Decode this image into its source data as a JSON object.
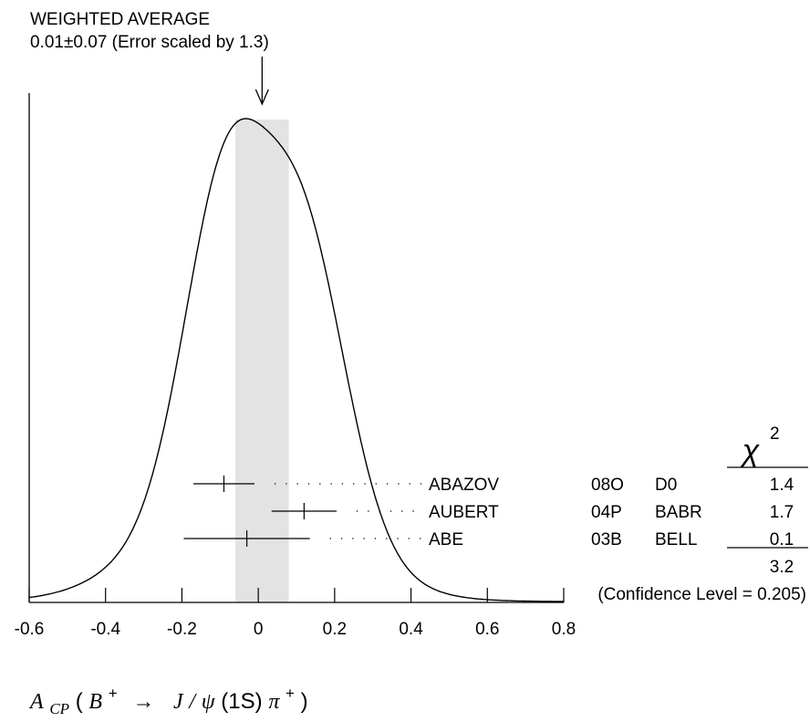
{
  "chart_data": {
    "type": "ideogram",
    "title": "WEIGHTED AVERAGE",
    "average": {
      "text": "0.01±0.07 (Error scaled by 1.3)",
      "value": 0.01,
      "error": 0.07
    },
    "x_axis": {
      "range": [
        -0.6,
        0.8
      ],
      "ticks": [
        -0.6,
        -0.4,
        -0.2,
        0,
        0.2,
        0.4,
        0.6,
        0.8
      ],
      "tick_labels": [
        "-0.6",
        "-0.4",
        "-0.2",
        "0",
        "0.2",
        "0.4",
        "0.6",
        "0.8"
      ]
    },
    "xlabel_parts": {
      "a": "A",
      "cp": "CP",
      "open": "(",
      "b": "B",
      "plus": "+",
      "arrow": "→",
      "j": "J",
      "slash": "/",
      "psi": "ψ",
      "one_s": "(1S)",
      "pi": "π",
      "plus2": "+",
      "close": ")"
    },
    "chi2_header": {
      "chi": "χ",
      "exp": "2"
    },
    "measurements": [
      {
        "author": "ABAZOV",
        "ref": "08O",
        "experiment": "D0",
        "value": -0.09,
        "error": 0.08,
        "chi2": "1.4"
      },
      {
        "author": "AUBERT",
        "ref": "04P",
        "experiment": "BABR",
        "value": 0.12,
        "error": 0.085,
        "chi2": "1.7"
      },
      {
        "author": "ABE",
        "ref": "03B",
        "experiment": "BELL",
        "value": -0.03,
        "error": 0.165,
        "chi2": "0.1"
      }
    ],
    "chi2_total": "3.2",
    "confidence_level": "(Confidence Level = 0.205)"
  }
}
